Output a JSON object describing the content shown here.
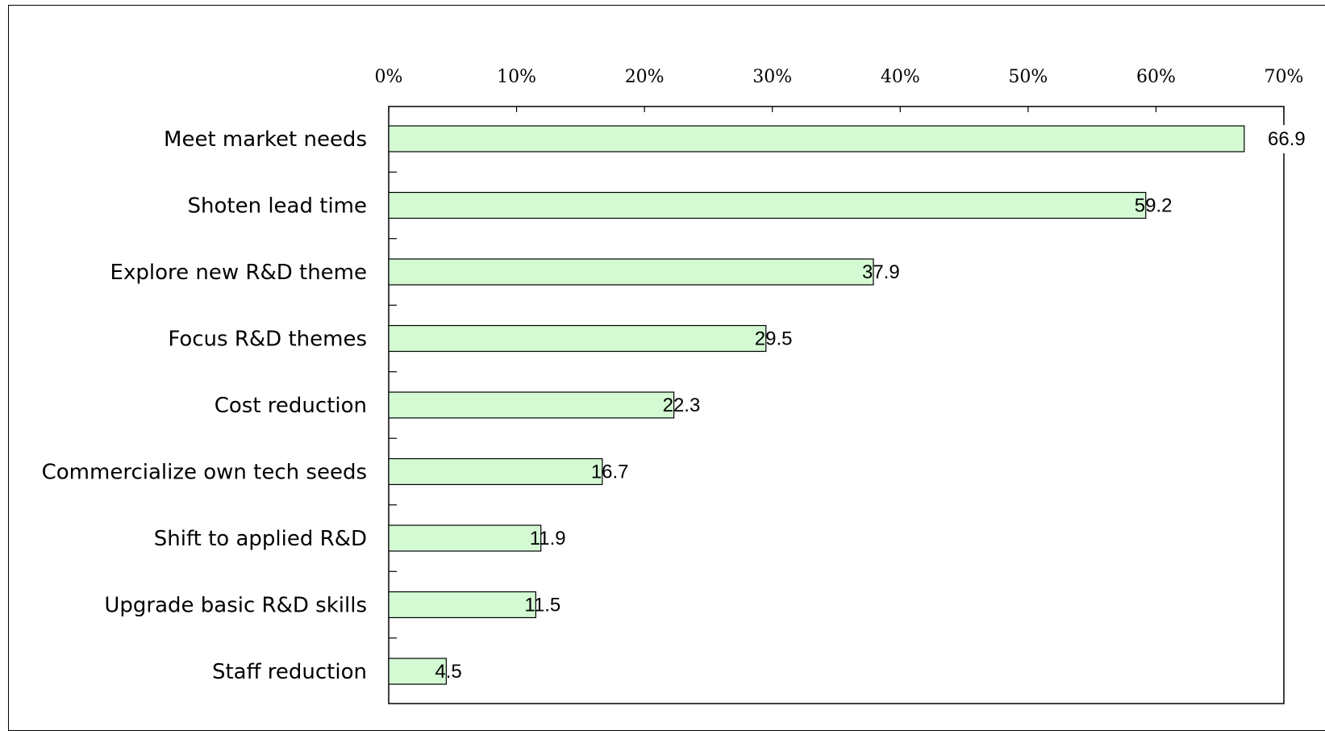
{
  "chart_data": {
    "type": "bar",
    "orientation": "horizontal",
    "categories": [
      "Meet market needs",
      "Shoten lead time",
      "Explore new R&D theme",
      "Focus R&D themes",
      "Cost reduction",
      "Commercialize own tech seeds",
      "Shift to applied R&D",
      "Upgrade basic R&D skills",
      "Staff reduction"
    ],
    "values": [
      66.9,
      59.2,
      37.9,
      29.5,
      22.3,
      16.7,
      11.9,
      11.5,
      4.5
    ],
    "value_labels": [
      "66.9",
      "59.2",
      "37.9",
      "29.5",
      "22.3",
      "16.7",
      "11.9",
      "11.5",
      "4.5"
    ],
    "x_ticks": [
      "0%",
      "10%",
      "20%",
      "30%",
      "40%",
      "50%",
      "60%",
      "70%"
    ],
    "xlim": [
      0,
      70
    ],
    "x_axis_position": "top",
    "grid": false,
    "legend": "none",
    "bar_color": "#d4fad4",
    "bar_edge_color": "#000000"
  }
}
